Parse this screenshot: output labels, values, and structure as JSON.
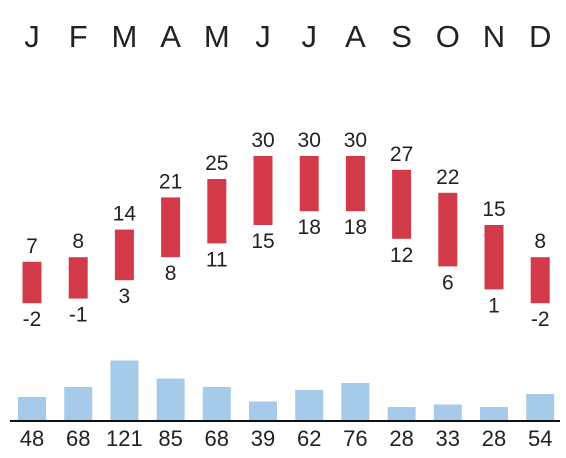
{
  "chart_data": {
    "type": "bar",
    "categories": [
      "J",
      "F",
      "M",
      "A",
      "M",
      "J",
      "J",
      "A",
      "S",
      "O",
      "N",
      "D"
    ],
    "temperature": {
      "high": [
        7,
        8,
        14,
        21,
        25,
        30,
        30,
        30,
        27,
        22,
        15,
        8
      ],
      "low": [
        -2,
        -1,
        3,
        8,
        11,
        15,
        18,
        18,
        12,
        6,
        1,
        -2
      ],
      "color": "#d23a4a"
    },
    "precipitation": {
      "values": [
        48,
        68,
        121,
        85,
        68,
        39,
        62,
        76,
        28,
        33,
        28,
        54
      ],
      "color": "#a6cbea"
    },
    "grid": false,
    "legend": "none"
  }
}
